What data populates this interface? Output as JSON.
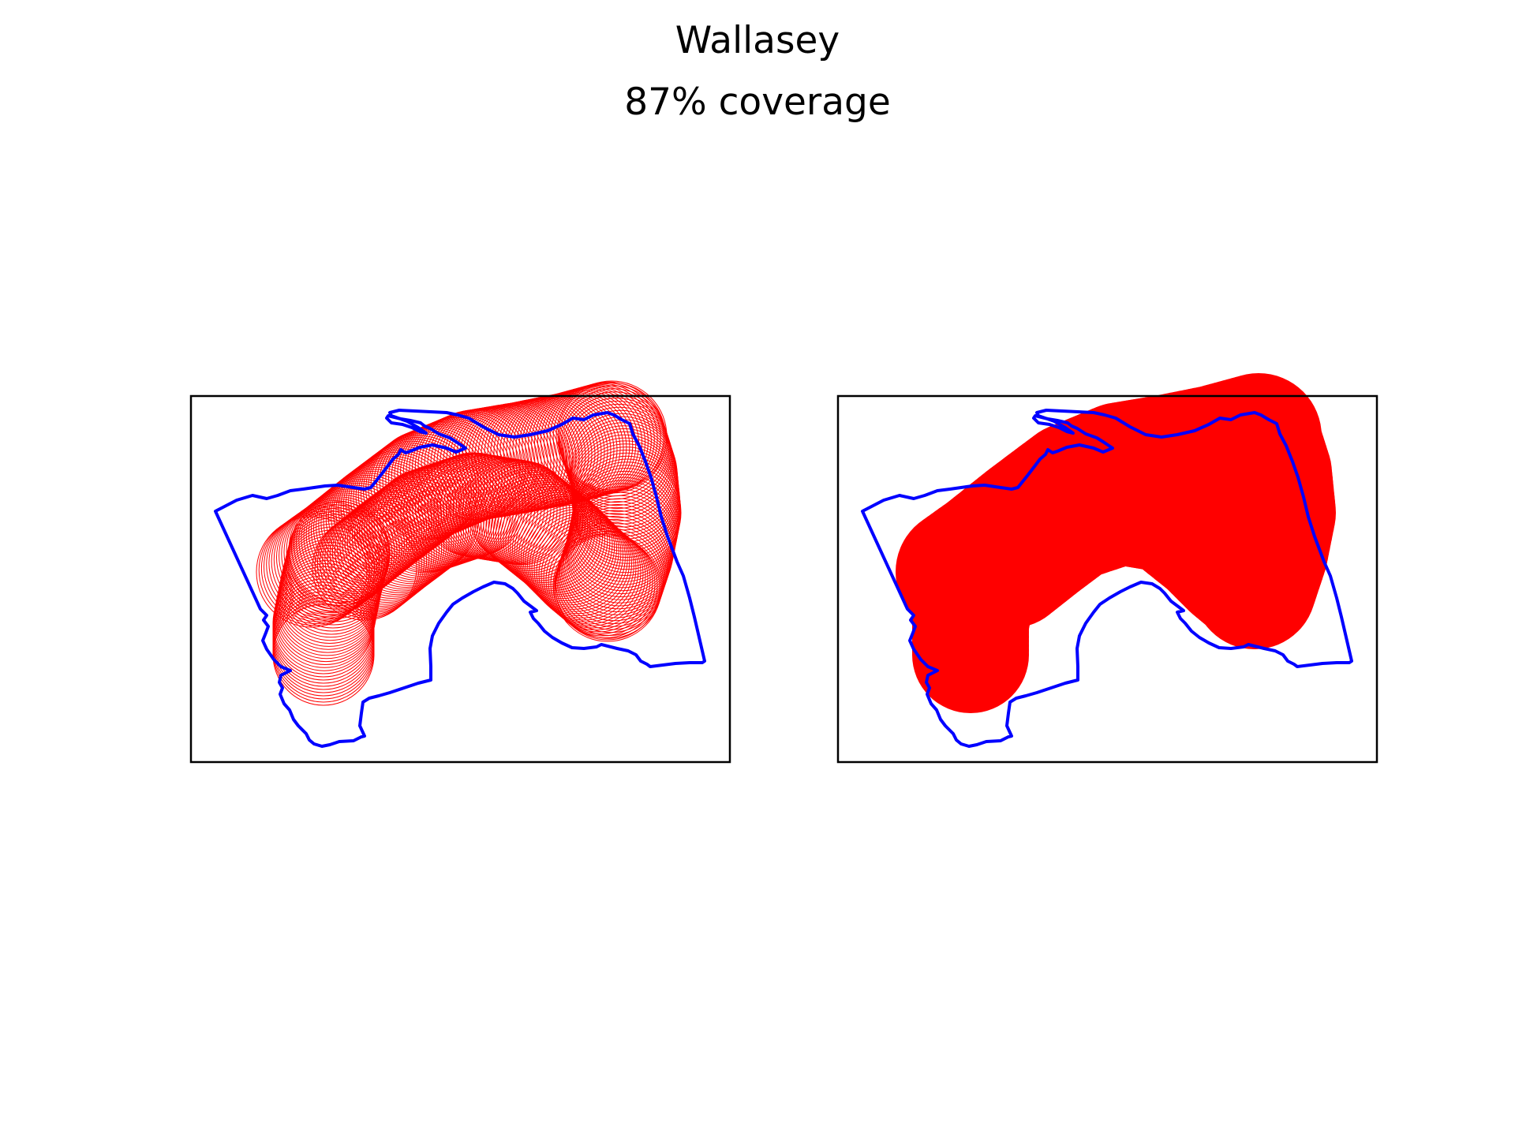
{
  "figure": {
    "title": "Wallasey",
    "subtitle": "87% coverage"
  },
  "colors": {
    "boundary": "#0000ff",
    "coverage": "#ff0000",
    "axes": "#000000",
    "background": "#ffffff"
  },
  "chart_data": [
    {
      "type": "map",
      "panel": "left",
      "style": "circle outlines",
      "boundary_name": "Wallasey",
      "coverage_percent": 87,
      "ticks": "none",
      "grid": false
    },
    {
      "type": "map",
      "panel": "right",
      "style": "filled coverage",
      "boundary_name": "Wallasey",
      "coverage_percent": 87,
      "ticks": "none",
      "grid": false
    }
  ]
}
